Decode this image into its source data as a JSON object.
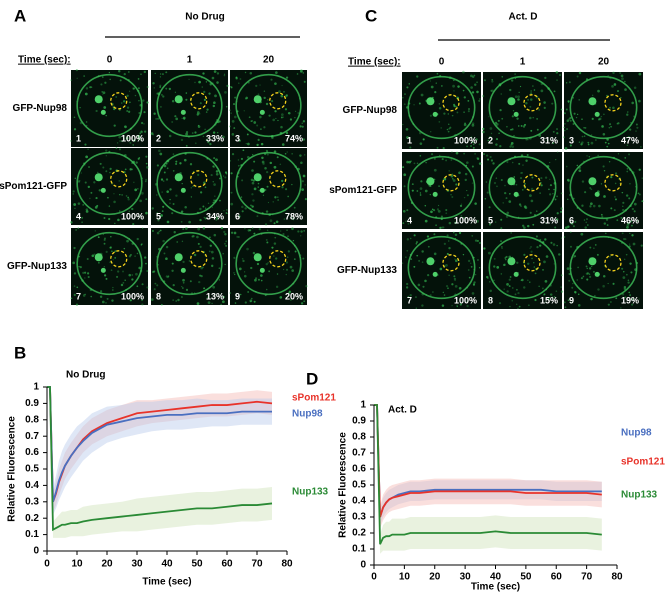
{
  "image_panels": [
    {
      "label": "A",
      "condition": "No Drug",
      "time_label": "Time (sec):",
      "times": [
        0,
        1,
        20
      ],
      "rows": [
        {
          "label": "GFP-Nup98",
          "cells": [
            {
              "index": 1,
              "percent": "100%"
            },
            {
              "index": 2,
              "percent": "33%"
            },
            {
              "index": 3,
              "percent": "74%"
            }
          ]
        },
        {
          "label": "sPom121-GFP",
          "cells": [
            {
              "index": 4,
              "percent": "100%"
            },
            {
              "index": 5,
              "percent": "34%"
            },
            {
              "index": 6,
              "percent": "78%"
            }
          ]
        },
        {
          "label": "GFP-Nup133",
          "cells": [
            {
              "index": 7,
              "percent": "100%"
            },
            {
              "index": 8,
              "percent": "13%"
            },
            {
              "index": 9,
              "percent": "20%"
            }
          ]
        }
      ]
    },
    {
      "label": "C",
      "condition": "Act. D",
      "time_label": "Time (sec):",
      "times": [
        0,
        1,
        20
      ],
      "rows": [
        {
          "label": "GFP-Nup98",
          "cells": [
            {
              "index": 1,
              "percent": "100%"
            },
            {
              "index": 2,
              "percent": "31%"
            },
            {
              "index": 3,
              "percent": "47%"
            }
          ]
        },
        {
          "label": "sPom121-GFP",
          "cells": [
            {
              "index": 4,
              "percent": "100%"
            },
            {
              "index": 5,
              "percent": "31%"
            },
            {
              "index": 6,
              "percent": "46%"
            }
          ]
        },
        {
          "label": "GFP-Nup133",
          "cells": [
            {
              "index": 7,
              "percent": "100%"
            },
            {
              "index": 8,
              "percent": "15%"
            },
            {
              "index": 9,
              "percent": "19%"
            }
          ]
        }
      ]
    }
  ],
  "chart_data": [
    {
      "panel_label": "B",
      "type": "line",
      "title": "No Drug",
      "xlabel": "Time (sec)",
      "ylabel": "Relative Fluorescence",
      "x": [
        0,
        1,
        2,
        3,
        4,
        5,
        6,
        8,
        10,
        12,
        15,
        20,
        25,
        30,
        35,
        40,
        45,
        50,
        55,
        60,
        65,
        70,
        75
      ],
      "xlim": [
        0,
        80
      ],
      "ylim": [
        0,
        1
      ],
      "xticks": [
        0,
        10,
        20,
        30,
        40,
        50,
        60,
        70,
        80
      ],
      "yticks": [
        0,
        0.1,
        0.2,
        0.3,
        0.4,
        0.5,
        0.6,
        0.7,
        0.8,
        0.9,
        1
      ],
      "series": [
        {
          "name": "sPom121",
          "color": "#e8332a",
          "band_color": "#f4b8b4",
          "values": [
            1,
            1,
            0.3,
            0.35,
            0.42,
            0.47,
            0.52,
            0.58,
            0.63,
            0.68,
            0.73,
            0.78,
            0.81,
            0.84,
            0.85,
            0.86,
            0.87,
            0.88,
            0.89,
            0.89,
            0.9,
            0.91,
            0.9
          ],
          "error": [
            0,
            0,
            0.06,
            0.07,
            0.08,
            0.08,
            0.08,
            0.08,
            0.08,
            0.08,
            0.08,
            0.08,
            0.08,
            0.08,
            0.07,
            0.07,
            0.07,
            0.07,
            0.07,
            0.07,
            0.07,
            0.07,
            0.07
          ]
        },
        {
          "name": "Nup98",
          "color": "#4a6fc0",
          "band_color": "#b7c9ec",
          "values": [
            1,
            1,
            0.3,
            0.36,
            0.43,
            0.48,
            0.52,
            0.58,
            0.63,
            0.67,
            0.72,
            0.77,
            0.79,
            0.81,
            0.82,
            0.83,
            0.83,
            0.84,
            0.84,
            0.84,
            0.85,
            0.85,
            0.85
          ],
          "error": [
            0,
            0,
            0.08,
            0.1,
            0.12,
            0.13,
            0.13,
            0.13,
            0.13,
            0.12,
            0.12,
            0.11,
            0.1,
            0.1,
            0.09,
            0.09,
            0.09,
            0.09,
            0.08,
            0.08,
            0.08,
            0.08,
            0.08
          ]
        },
        {
          "name": "Nup133",
          "color": "#2a8a35",
          "band_color": "#cfe3b8",
          "values": [
            1,
            1,
            0.13,
            0.14,
            0.15,
            0.16,
            0.16,
            0.17,
            0.17,
            0.18,
            0.19,
            0.2,
            0.21,
            0.22,
            0.23,
            0.24,
            0.25,
            0.26,
            0.26,
            0.27,
            0.28,
            0.28,
            0.29
          ],
          "error": [
            0,
            0,
            0.05,
            0.06,
            0.07,
            0.08,
            0.08,
            0.08,
            0.08,
            0.09,
            0.09,
            0.09,
            0.09,
            0.1,
            0.1,
            0.1,
            0.1,
            0.1,
            0.1,
            0.1,
            0.1,
            0.1,
            0.1
          ]
        }
      ]
    },
    {
      "panel_label": "D",
      "type": "line",
      "title": "Act. D",
      "xlabel": "Time (sec)",
      "ylabel": "Relative Fluorescence",
      "x": [
        0,
        1,
        2,
        3,
        4,
        5,
        6,
        8,
        10,
        12,
        15,
        20,
        25,
        30,
        35,
        40,
        45,
        50,
        55,
        60,
        65,
        70,
        75
      ],
      "xlim": [
        0,
        80
      ],
      "ylim": [
        0,
        1
      ],
      "xticks": [
        0,
        10,
        20,
        30,
        40,
        50,
        60,
        70,
        80
      ],
      "yticks": [
        0,
        0.1,
        0.2,
        0.3,
        0.4,
        0.5,
        0.6,
        0.7,
        0.8,
        0.9,
        1
      ],
      "series": [
        {
          "name": "Nup98",
          "color": "#4a6fc0",
          "band_color": "#b7c9ec",
          "values": [
            1,
            1,
            0.3,
            0.36,
            0.39,
            0.41,
            0.42,
            0.44,
            0.45,
            0.46,
            0.46,
            0.47,
            0.47,
            0.47,
            0.47,
            0.47,
            0.47,
            0.47,
            0.47,
            0.46,
            0.46,
            0.46,
            0.46
          ],
          "error": [
            0,
            0,
            0.05,
            0.06,
            0.06,
            0.06,
            0.06,
            0.06,
            0.06,
            0.06,
            0.06,
            0.06,
            0.06,
            0.06,
            0.06,
            0.06,
            0.06,
            0.06,
            0.06,
            0.06,
            0.06,
            0.06,
            0.06
          ]
        },
        {
          "name": "sPom121",
          "color": "#e8332a",
          "band_color": "#f4b8b4",
          "values": [
            1,
            1,
            0.3,
            0.36,
            0.39,
            0.41,
            0.42,
            0.43,
            0.44,
            0.45,
            0.45,
            0.46,
            0.46,
            0.46,
            0.46,
            0.46,
            0.46,
            0.45,
            0.45,
            0.45,
            0.45,
            0.45,
            0.44
          ],
          "error": [
            0,
            0,
            0.07,
            0.08,
            0.08,
            0.08,
            0.08,
            0.08,
            0.08,
            0.08,
            0.08,
            0.08,
            0.08,
            0.08,
            0.08,
            0.08,
            0.08,
            0.08,
            0.08,
            0.08,
            0.08,
            0.08,
            0.08
          ]
        },
        {
          "name": "Nup133",
          "color": "#2a8a35",
          "band_color": "#cfe3b8",
          "values": [
            1,
            1,
            0.13,
            0.17,
            0.18,
            0.18,
            0.19,
            0.19,
            0.19,
            0.2,
            0.2,
            0.2,
            0.2,
            0.2,
            0.2,
            0.21,
            0.2,
            0.2,
            0.2,
            0.2,
            0.2,
            0.2,
            0.19
          ],
          "error": [
            0,
            0,
            0.06,
            0.08,
            0.09,
            0.09,
            0.1,
            0.1,
            0.1,
            0.1,
            0.1,
            0.1,
            0.1,
            0.1,
            0.1,
            0.1,
            0.1,
            0.1,
            0.1,
            0.1,
            0.1,
            0.1,
            0.1
          ]
        }
      ]
    }
  ]
}
